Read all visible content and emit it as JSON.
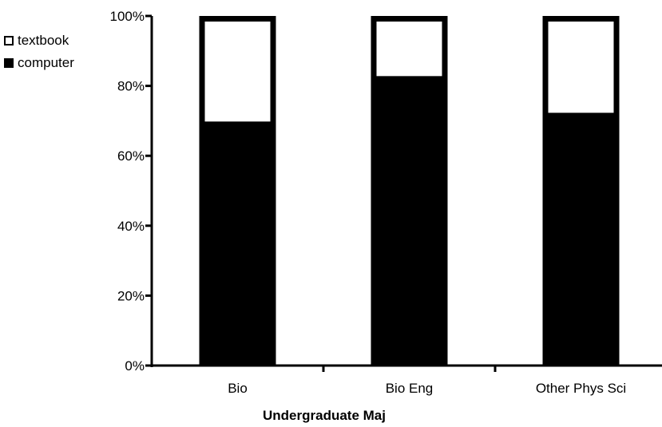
{
  "chart_data": {
    "type": "bar",
    "stacked": true,
    "categories": [
      "Bio",
      "Bio Eng",
      "Other Phys Sci"
    ],
    "series": [
      {
        "name": "computer",
        "values": [
          69,
          82,
          71.5
        ],
        "color": "#000000"
      },
      {
        "name": "textbook",
        "values": [
          31,
          18,
          28.5
        ],
        "color": "#ffffff"
      }
    ],
    "ylim": [
      0,
      100
    ],
    "yticks": [
      0,
      20,
      40,
      60,
      80,
      100
    ],
    "ytick_labels": [
      "0%",
      "20%",
      "40%",
      "60%",
      "80%",
      "100%"
    ],
    "xlabel": "Undergraduate Maj",
    "ylabel": "",
    "legend": {
      "position": "top-left",
      "items": [
        {
          "label": "textbook",
          "swatch": "hollow-square"
        },
        {
          "label": "computer",
          "swatch": "filled-square"
        }
      ]
    },
    "grid": false
  }
}
